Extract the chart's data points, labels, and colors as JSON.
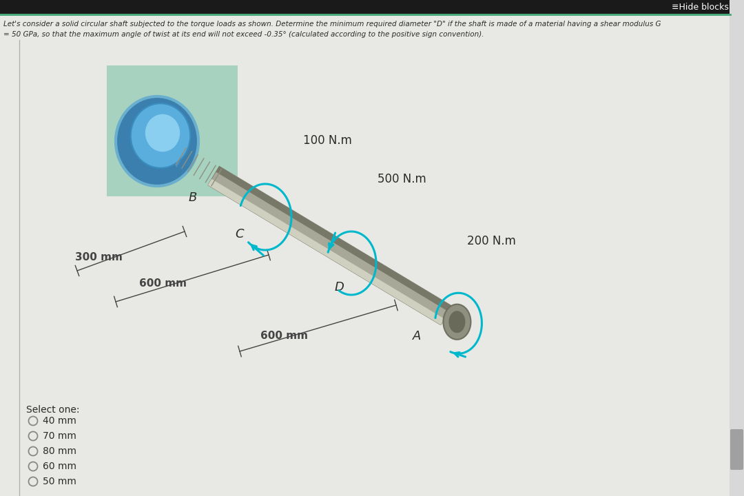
{
  "bg_color": "#c8c8c8",
  "content_bg": "#e8e8e5",
  "header_bg": "#1a1a1a",
  "header_text_color": "#ffffff",
  "header_text": "≡Hide blocks",
  "header_fontsize": 9,
  "problem_text_line1": "Let's consider a solid circular shaft subjected to the torque loads as shown. Determine the minimum required diameter \"D\" if the shaft is made of a material having a shear modulus G",
  "problem_text_line2": "= 50 GPa, so that the maximum angle of twist at its end will not exceed -0.35° (calculated according to the positive sign convention).",
  "problem_fontsize": 7.5,
  "torque_labels": [
    "100 N.m",
    "500 N.m",
    "200 N.m"
  ],
  "dimension_labels": [
    "300 mm",
    "600 mm",
    "600 mm"
  ],
  "point_labels": [
    "B",
    "C",
    "D",
    "A"
  ],
  "select_one_text": "Select one:",
  "options": [
    "40 mm",
    "70 mm",
    "80 mm",
    "60 mm",
    "50 mm"
  ],
  "option_fontsize": 10,
  "select_fontsize": 10,
  "shaft_color_mid": "#a8a898",
  "shaft_color_light": "#d0d0c0",
  "shaft_color_dark": "#787868",
  "disk_outer": "#4a8fbe",
  "disk_mid": "#6aafde",
  "disk_light": "#8acfee",
  "disk_edge": "#2a6f9e",
  "wall_color": "#70c0a0",
  "cyan_color": "#00b8cc",
  "text_dark": "#2a2a2a",
  "dim_color": "#444444",
  "left_bar_color": "#b0b0b0",
  "scrollbar_bg": "#d8d8d8",
  "scrollbar_thumb": "#a0a0a0",
  "green_line_color": "#40a878"
}
